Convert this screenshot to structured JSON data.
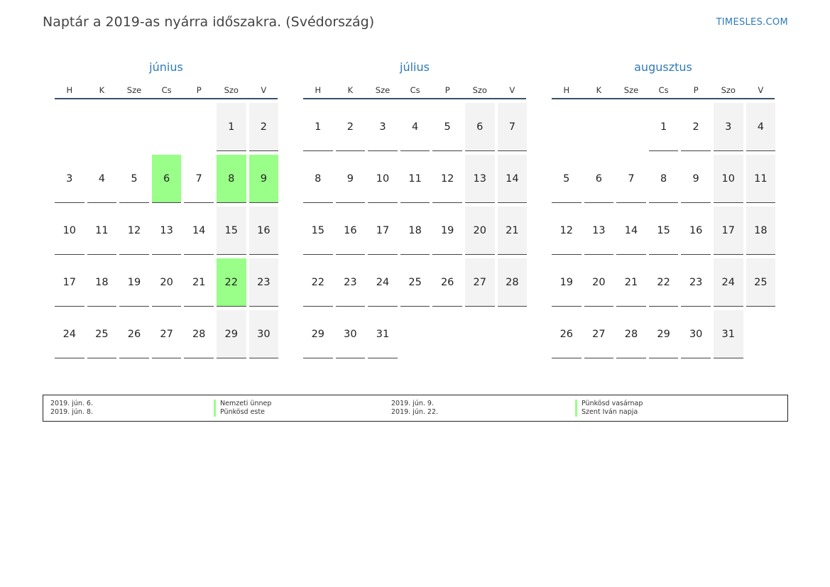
{
  "title": "Naptár a 2019-as nyárra időszakra. (Svédország)",
  "site": "TIMESLES.COM",
  "colors": {
    "holiday": "#99ff88",
    "weekend": "#f3f3f3",
    "accent": "#2e7ab8"
  },
  "weekdays": [
    "H",
    "K",
    "Sze",
    "Cs",
    "P",
    "Szo",
    "V"
  ],
  "months": [
    {
      "name": "június",
      "offset": 5,
      "days": 30,
      "holidays": [
        6,
        8,
        9,
        22
      ]
    },
    {
      "name": "július",
      "offset": 0,
      "days": 31,
      "holidays": []
    },
    {
      "name": "augusztus",
      "offset": 3,
      "days": 31,
      "holidays": []
    }
  ],
  "legend": [
    {
      "date": "2019. jún. 6.",
      "name": "Nemzeti ünnep"
    },
    {
      "date": "2019. jún. 8.",
      "name": "Pünkösd este"
    },
    {
      "date": "2019. jún. 9.",
      "name": "Pünkösd vasárnap"
    },
    {
      "date": "2019. jún. 22.",
      "name": "Szent Iván napja"
    }
  ]
}
